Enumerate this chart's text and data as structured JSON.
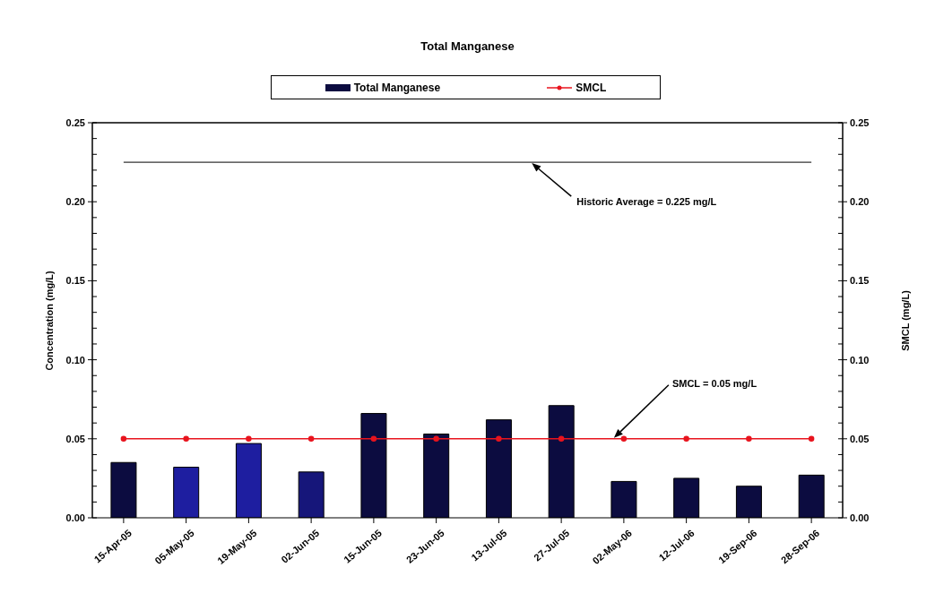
{
  "chart_data": {
    "type": "bar",
    "title": "Total Manganese",
    "ylabel": "Concentration (mg/L)",
    "y2label": "SMCL (mg/L)",
    "categories": [
      "15-Apr-05",
      "05-May-05",
      "19-May-05",
      "02-Jun-05",
      "15-Jun-05",
      "23-Jun-05",
      "13-Jul-05",
      "27-Jul-05",
      "02-May-06",
      "12-Jul-06",
      "19-Sep-06",
      "28-Sep-06"
    ],
    "series": [
      {
        "name": "Total Manganese",
        "color": "#0c0c40",
        "colors": [
          "#0c0c40",
          "#1e1ea0",
          "#1e1ea0",
          "#16167a",
          "#0c0c40",
          "#0c0c40",
          "#0c0c40",
          "#0c0c40",
          "#0c0c40",
          "#0c0c40",
          "#0c0c40",
          "#0c0c40"
        ],
        "values": [
          0.035,
          0.032,
          0.047,
          0.029,
          0.066,
          0.053,
          0.062,
          0.071,
          0.023,
          0.025,
          0.02,
          0.027
        ]
      },
      {
        "name": "SMCL",
        "type": "line",
        "axis": "y2",
        "color": "#e8141e",
        "marker": "circle",
        "values": [
          0.05,
          0.05,
          0.05,
          0.05,
          0.05,
          0.05,
          0.05,
          0.05,
          0.05,
          0.05,
          0.05,
          0.05
        ]
      }
    ],
    "ylim": [
      0,
      0.25
    ],
    "yticks": [
      {
        "value": 0,
        "label": "0.00"
      },
      {
        "value": 0.01,
        "label": null
      },
      {
        "value": 0.02,
        "label": null
      },
      {
        "value": 0.03,
        "label": null
      },
      {
        "value": 0.04,
        "label": null
      },
      {
        "value": 0.05,
        "label": "0.05"
      },
      {
        "value": 0.06,
        "label": null
      },
      {
        "value": 0.07,
        "label": null
      },
      {
        "value": 0.08,
        "label": null
      },
      {
        "value": 0.09,
        "label": null
      },
      {
        "value": 0.1,
        "label": "0.10"
      },
      {
        "value": 0.11,
        "label": null
      },
      {
        "value": 0.12,
        "label": null
      },
      {
        "value": 0.13,
        "label": null
      },
      {
        "value": 0.14,
        "label": null
      },
      {
        "value": 0.15,
        "label": "0.15"
      },
      {
        "value": 0.16,
        "label": null
      },
      {
        "value": 0.17,
        "label": null
      },
      {
        "value": 0.18,
        "label": null
      },
      {
        "value": 0.19,
        "label": null
      },
      {
        "value": 0.2,
        "label": "0.20"
      },
      {
        "value": 0.21,
        "label": null
      },
      {
        "value": 0.22,
        "label": null
      },
      {
        "value": 0.23,
        "label": null
      },
      {
        "value": 0.24,
        "label": null
      },
      {
        "value": 0.25,
        "label": "0.25"
      }
    ],
    "y2lim": [
      0,
      0.25
    ],
    "y2ticks": [
      {
        "value": 0,
        "label": "0.00"
      },
      {
        "value": 0.01,
        "label": null
      },
      {
        "value": 0.02,
        "label": null
      },
      {
        "value": 0.03,
        "label": null
      },
      {
        "value": 0.04,
        "label": null
      },
      {
        "value": 0.05,
        "label": "0.05"
      },
      {
        "value": 0.06,
        "label": null
      },
      {
        "value": 0.07,
        "label": null
      },
      {
        "value": 0.08,
        "label": null
      },
      {
        "value": 0.09,
        "label": null
      },
      {
        "value": 0.1,
        "label": "0.10"
      },
      {
        "value": 0.11,
        "label": null
      },
      {
        "value": 0.12,
        "label": null
      },
      {
        "value": 0.13,
        "label": null
      },
      {
        "value": 0.14,
        "label": null
      },
      {
        "value": 0.15,
        "label": "0.15"
      },
      {
        "value": 0.16,
        "label": null
      },
      {
        "value": 0.17,
        "label": null
      },
      {
        "value": 0.18,
        "label": null
      },
      {
        "value": 0.19,
        "label": null
      },
      {
        "value": 0.2,
        "label": "0.20"
      },
      {
        "value": 0.21,
        "label": null
      },
      {
        "value": 0.22,
        "label": null
      },
      {
        "value": 0.23,
        "label": null
      },
      {
        "value": 0.24,
        "label": null
      },
      {
        "value": 0.25,
        "label": "0.25"
      }
    ],
    "ref_lines": [
      {
        "axis": "y",
        "value": 0.225,
        "label": "Historic Average = 0.225 mg/L",
        "color": "#000000"
      }
    ],
    "annotations": [
      {
        "text": "SMCL = 0.05 mg/L",
        "x": "02-May-06",
        "y": 0.05
      }
    ],
    "legend": "top"
  }
}
